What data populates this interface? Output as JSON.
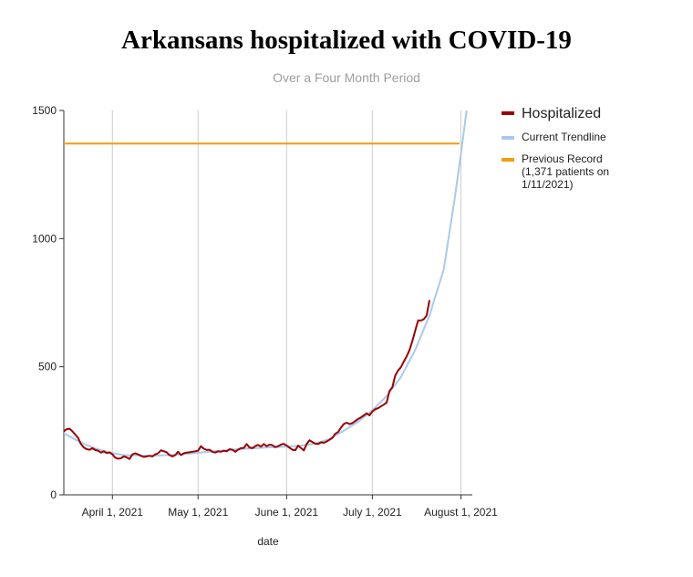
{
  "chart_data": {
    "type": "line",
    "title": "Arkansans hospitalized with COVID-19",
    "subtitle": "Over a Four Month Period",
    "xlabel": "date",
    "ylabel": "",
    "x_range": [
      "2021-03-15",
      "2021-08-05"
    ],
    "ylim": [
      0,
      1500
    ],
    "y_ticks": [
      0,
      500,
      1000,
      1500
    ],
    "x_ticks": [
      {
        "date": "2021-04-01",
        "label": "April 1, 2021"
      },
      {
        "date": "2021-05-01",
        "label": "May 1, 2021"
      },
      {
        "date": "2021-06-01",
        "label": "June 1, 2021"
      },
      {
        "date": "2021-07-01",
        "label": "July 1, 2021"
      },
      {
        "date": "2021-08-01",
        "label": "August 1, 2021"
      }
    ],
    "grid": "vertical",
    "legend_position": "right",
    "series": [
      {
        "name": "Hospitalized",
        "color": "#990000",
        "points": [
          [
            "2021-03-15",
            248
          ],
          [
            "2021-03-16",
            256
          ],
          [
            "2021-03-17",
            258
          ],
          [
            "2021-03-18",
            248
          ],
          [
            "2021-03-19",
            235
          ],
          [
            "2021-03-20",
            222
          ],
          [
            "2021-03-21",
            198
          ],
          [
            "2021-03-22",
            185
          ],
          [
            "2021-03-23",
            178
          ],
          [
            "2021-03-24",
            176
          ],
          [
            "2021-03-25",
            182
          ],
          [
            "2021-03-26",
            175
          ],
          [
            "2021-03-27",
            172
          ],
          [
            "2021-03-28",
            165
          ],
          [
            "2021-03-29",
            170
          ],
          [
            "2021-03-30",
            163
          ],
          [
            "2021-03-31",
            166
          ],
          [
            "2021-04-01",
            158
          ],
          [
            "2021-04-02",
            145
          ],
          [
            "2021-04-03",
            141
          ],
          [
            "2021-04-04",
            143
          ],
          [
            "2021-04-05",
            150
          ],
          [
            "2021-04-06",
            146
          ],
          [
            "2021-04-07",
            140
          ],
          [
            "2021-04-08",
            158
          ],
          [
            "2021-04-09",
            162
          ],
          [
            "2021-04-10",
            158
          ],
          [
            "2021-04-11",
            152
          ],
          [
            "2021-04-12",
            148
          ],
          [
            "2021-04-13",
            150
          ],
          [
            "2021-04-14",
            152
          ],
          [
            "2021-04-15",
            150
          ],
          [
            "2021-04-16",
            158
          ],
          [
            "2021-04-17",
            162
          ],
          [
            "2021-04-18",
            174
          ],
          [
            "2021-04-19",
            170
          ],
          [
            "2021-04-20",
            166
          ],
          [
            "2021-04-21",
            155
          ],
          [
            "2021-04-22",
            150
          ],
          [
            "2021-04-23",
            155
          ],
          [
            "2021-04-24",
            168
          ],
          [
            "2021-04-25",
            155
          ],
          [
            "2021-04-26",
            162
          ],
          [
            "2021-04-27",
            165
          ],
          [
            "2021-04-28",
            166
          ],
          [
            "2021-04-29",
            168
          ],
          [
            "2021-04-30",
            170
          ],
          [
            "2021-05-01",
            172
          ],
          [
            "2021-05-02",
            190
          ],
          [
            "2021-05-03",
            180
          ],
          [
            "2021-05-04",
            175
          ],
          [
            "2021-05-05",
            176
          ],
          [
            "2021-05-06",
            168
          ],
          [
            "2021-05-07",
            165
          ],
          [
            "2021-05-08",
            170
          ],
          [
            "2021-05-09",
            168
          ],
          [
            "2021-05-10",
            172
          ],
          [
            "2021-05-11",
            170
          ],
          [
            "2021-05-12",
            178
          ],
          [
            "2021-05-13",
            176
          ],
          [
            "2021-05-14",
            168
          ],
          [
            "2021-05-15",
            176
          ],
          [
            "2021-05-16",
            182
          ],
          [
            "2021-05-17",
            183
          ],
          [
            "2021-05-18",
            198
          ],
          [
            "2021-05-19",
            185
          ],
          [
            "2021-05-20",
            182
          ],
          [
            "2021-05-21",
            190
          ],
          [
            "2021-05-22",
            195
          ],
          [
            "2021-05-23",
            188
          ],
          [
            "2021-05-24",
            198
          ],
          [
            "2021-05-25",
            190
          ],
          [
            "2021-05-26",
            196
          ],
          [
            "2021-05-27",
            194
          ],
          [
            "2021-05-28",
            186
          ],
          [
            "2021-05-29",
            190
          ],
          [
            "2021-05-30",
            196
          ],
          [
            "2021-05-31",
            199
          ],
          [
            "2021-06-01",
            192
          ],
          [
            "2021-06-02",
            184
          ],
          [
            "2021-06-03",
            176
          ],
          [
            "2021-06-04",
            174
          ],
          [
            "2021-06-05",
            192
          ],
          [
            "2021-06-06",
            183
          ],
          [
            "2021-06-07",
            173
          ],
          [
            "2021-06-08",
            198
          ],
          [
            "2021-06-09",
            213
          ],
          [
            "2021-06-10",
            206
          ],
          [
            "2021-06-11",
            200
          ],
          [
            "2021-06-12",
            198
          ],
          [
            "2021-06-13",
            205
          ],
          [
            "2021-06-14",
            203
          ],
          [
            "2021-06-15",
            208
          ],
          [
            "2021-06-16",
            215
          ],
          [
            "2021-06-17",
            222
          ],
          [
            "2021-06-18",
            238
          ],
          [
            "2021-06-19",
            245
          ],
          [
            "2021-06-20",
            262
          ],
          [
            "2021-06-21",
            276
          ],
          [
            "2021-06-22",
            282
          ],
          [
            "2021-06-23",
            276
          ],
          [
            "2021-06-24",
            280
          ],
          [
            "2021-06-25",
            288
          ],
          [
            "2021-06-26",
            296
          ],
          [
            "2021-06-27",
            302
          ],
          [
            "2021-06-28",
            310
          ],
          [
            "2021-06-29",
            318
          ],
          [
            "2021-06-30",
            310
          ],
          [
            "2021-07-01",
            325
          ],
          [
            "2021-07-02",
            334
          ],
          [
            "2021-07-03",
            338
          ],
          [
            "2021-07-04",
            345
          ],
          [
            "2021-07-05",
            352
          ],
          [
            "2021-07-06",
            360
          ],
          [
            "2021-07-07",
            405
          ],
          [
            "2021-07-08",
            420
          ],
          [
            "2021-07-09",
            465
          ],
          [
            "2021-07-10",
            485
          ],
          [
            "2021-07-11",
            498
          ],
          [
            "2021-07-12",
            520
          ],
          [
            "2021-07-13",
            540
          ],
          [
            "2021-07-14",
            565
          ],
          [
            "2021-07-15",
            600
          ],
          [
            "2021-07-16",
            640
          ],
          [
            "2021-07-17",
            680
          ],
          [
            "2021-07-18",
            680
          ],
          [
            "2021-07-19",
            685
          ],
          [
            "2021-07-20",
            700
          ],
          [
            "2021-07-21",
            760
          ]
        ]
      },
      {
        "name": "Current Trendline",
        "color": "#aac9ea",
        "points": [
          [
            "2021-03-15",
            240
          ],
          [
            "2021-03-20",
            210
          ],
          [
            "2021-03-25",
            185
          ],
          [
            "2021-03-31",
            165
          ],
          [
            "2021-04-05",
            155
          ],
          [
            "2021-04-15",
            152
          ],
          [
            "2021-04-25",
            158
          ],
          [
            "2021-05-05",
            168
          ],
          [
            "2021-05-15",
            178
          ],
          [
            "2021-05-25",
            185
          ],
          [
            "2021-06-01",
            188
          ],
          [
            "2021-06-06",
            192
          ],
          [
            "2021-06-11",
            200
          ],
          [
            "2021-06-16",
            218
          ],
          [
            "2021-06-21",
            250
          ],
          [
            "2021-06-26",
            285
          ],
          [
            "2021-07-01",
            330
          ],
          [
            "2021-07-06",
            385
          ],
          [
            "2021-07-11",
            460
          ],
          [
            "2021-07-16",
            565
          ],
          [
            "2021-07-21",
            700
          ],
          [
            "2021-07-26",
            880
          ],
          [
            "2021-07-30",
            1170
          ],
          [
            "2021-08-01",
            1330
          ],
          [
            "2021-08-03",
            1500
          ]
        ]
      },
      {
        "name": "Previous Record",
        "legend_label": "Previous Record (1,371 patients on 1/11/2021)",
        "color": "#f39c12",
        "value": 1371
      }
    ]
  }
}
